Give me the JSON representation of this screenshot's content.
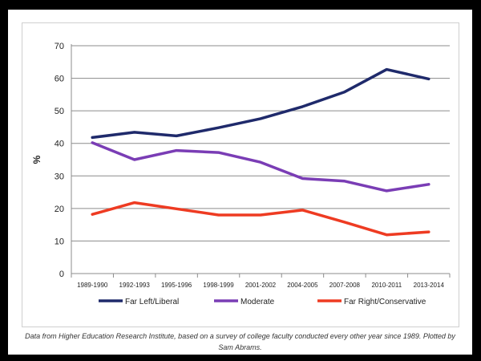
{
  "chart_data": {
    "type": "line",
    "ylabel": "%",
    "xlabel": "",
    "ylim": [
      0,
      70
    ],
    "yticks": [
      0,
      10,
      20,
      30,
      40,
      50,
      60,
      70
    ],
    "grid": true,
    "legend_position": "bottom",
    "categories": [
      "1989-1990",
      "1992-1993",
      "1995-1996",
      "1998-1999",
      "2001-2002",
      "2004-2005",
      "2007-2008",
      "2010-2011",
      "2013-2014"
    ],
    "series": [
      {
        "name": "Far Left/Liberal",
        "color": "#1f2a6b",
        "values": [
          41.8,
          43.4,
          42.3,
          44.8,
          47.6,
          51.3,
          55.8,
          62.7,
          59.8
        ]
      },
      {
        "name": "Moderate",
        "color": "#7a3db5",
        "values": [
          40.2,
          35.0,
          37.8,
          37.2,
          34.2,
          29.2,
          28.4,
          25.4,
          27.4
        ]
      },
      {
        "name": "Far Right/Conservative",
        "color": "#ee3b22",
        "values": [
          18.2,
          21.8,
          19.9,
          18.0,
          18.0,
          19.5,
          15.8,
          11.9,
          12.8
        ]
      }
    ]
  },
  "caption": "Data from Higher Education Research Institute, based on a survey of college faculty conducted every other year since 1989. Plotted by Sam Abrams."
}
